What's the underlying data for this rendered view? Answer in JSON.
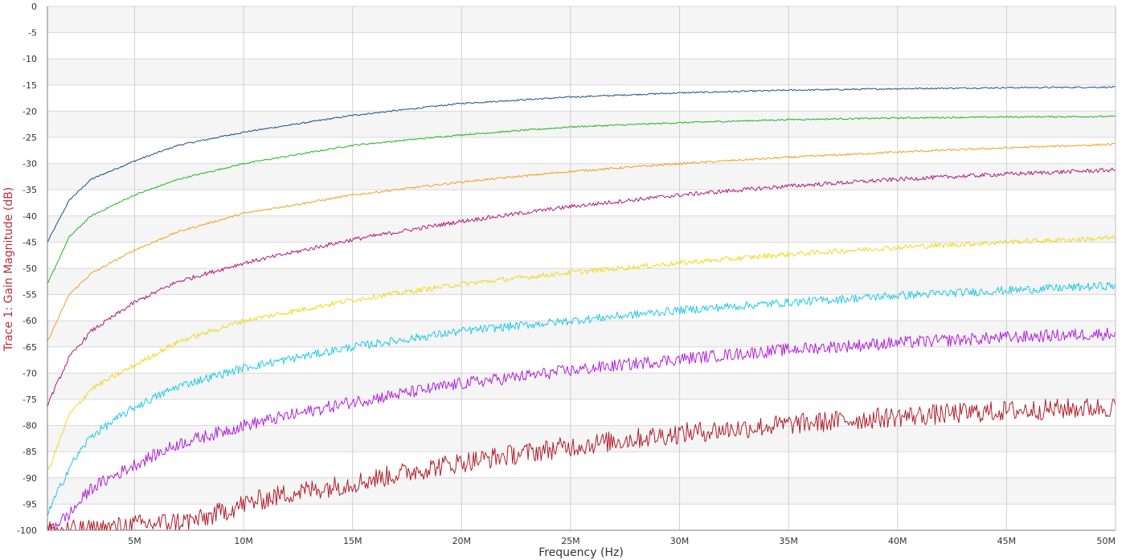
{
  "chart_data": {
    "type": "line",
    "xlabel": "Frequency (Hz)",
    "ylabel": "Trace 1: Gain Magnitude (dB)",
    "xlim": [
      1000000,
      50000000
    ],
    "ylim": [
      -100,
      0
    ],
    "grid": true,
    "x_ticks": [
      {
        "value": 5000000,
        "label": "5M"
      },
      {
        "value": 10000000,
        "label": "10M"
      },
      {
        "value": 15000000,
        "label": "15M"
      },
      {
        "value": 20000000,
        "label": "20M"
      },
      {
        "value": 25000000,
        "label": "25M"
      },
      {
        "value": 30000000,
        "label": "30M"
      },
      {
        "value": 35000000,
        "label": "35M"
      },
      {
        "value": 40000000,
        "label": "40M"
      },
      {
        "value": 45000000,
        "label": "45M"
      },
      {
        "value": 50000000,
        "label": "50M"
      }
    ],
    "y_ticks": [
      {
        "value": 0,
        "label": "0"
      },
      {
        "value": -5,
        "label": "-5"
      },
      {
        "value": -10,
        "label": "-10"
      },
      {
        "value": -15,
        "label": "-15"
      },
      {
        "value": -20,
        "label": "-20"
      },
      {
        "value": -25,
        "label": "-25"
      },
      {
        "value": -30,
        "label": "-30"
      },
      {
        "value": -35,
        "label": "-35"
      },
      {
        "value": -40,
        "label": "-40"
      },
      {
        "value": -45,
        "label": "-45"
      },
      {
        "value": -50,
        "label": "-50"
      },
      {
        "value": -55,
        "label": "-55"
      },
      {
        "value": -60,
        "label": "-60"
      },
      {
        "value": -65,
        "label": "-65"
      },
      {
        "value": -70,
        "label": "-70"
      },
      {
        "value": -75,
        "label": "-75"
      },
      {
        "value": -80,
        "label": "-80"
      },
      {
        "value": -85,
        "label": "-85"
      },
      {
        "value": -90,
        "label": "-90"
      },
      {
        "value": -95,
        "label": "-95"
      },
      {
        "value": -100,
        "label": "-100"
      }
    ],
    "series": [
      {
        "color": "#1f4e8c",
        "noise": 0.15,
        "x": [
          1000000,
          2000000,
          3000000,
          5000000,
          7000000,
          10000000,
          15000000,
          20000000,
          25000000,
          30000000,
          35000000,
          40000000,
          45000000,
          50000000
        ],
        "y": [
          -45,
          -37,
          -33,
          -29.5,
          -26.5,
          -24,
          -20.8,
          -18.5,
          -17.3,
          -16.5,
          -16,
          -15.7,
          -15.5,
          -15.4
        ]
      },
      {
        "color": "#22b422",
        "noise": 0.15,
        "x": [
          1000000,
          2000000,
          3000000,
          5000000,
          7000000,
          10000000,
          15000000,
          20000000,
          25000000,
          30000000,
          35000000,
          40000000,
          45000000,
          50000000
        ],
        "y": [
          -53,
          -44,
          -40,
          -36,
          -33,
          -30,
          -26.5,
          -24.5,
          -23,
          -22.2,
          -21.6,
          -21.3,
          -21.1,
          -21
        ]
      },
      {
        "color": "#f0a020",
        "noise": 0.2,
        "x": [
          1000000,
          2000000,
          3000000,
          5000000,
          7000000,
          10000000,
          15000000,
          20000000,
          25000000,
          30000000,
          35000000,
          40000000,
          45000000,
          50000000
        ],
        "y": [
          -64,
          -55,
          -51,
          -46.5,
          -43,
          -39.5,
          -36,
          -33.5,
          -31.5,
          -30,
          -28.8,
          -27.8,
          -27,
          -26.3
        ]
      },
      {
        "color": "#b0197e",
        "noise": 0.4,
        "x": [
          1000000,
          2000000,
          3000000,
          5000000,
          7000000,
          10000000,
          15000000,
          20000000,
          25000000,
          30000000,
          35000000,
          40000000,
          45000000,
          50000000
        ],
        "y": [
          -76,
          -67,
          -62,
          -56.5,
          -52.5,
          -49,
          -44.5,
          -41,
          -38.2,
          -36,
          -34.3,
          -33,
          -32,
          -31.2
        ]
      },
      {
        "color": "#f0d820",
        "noise": 0.5,
        "x": [
          1000000,
          2000000,
          3000000,
          5000000,
          7000000,
          10000000,
          15000000,
          20000000,
          25000000,
          30000000,
          35000000,
          40000000,
          45000000,
          50000000
        ],
        "y": [
          -89,
          -78,
          -73,
          -68.5,
          -64,
          -60,
          -56,
          -53,
          -50.8,
          -49,
          -47.3,
          -46,
          -45,
          -44.2
        ]
      },
      {
        "color": "#20c8e8",
        "noise": 0.8,
        "x": [
          1000000,
          2000000,
          3000000,
          5000000,
          7000000,
          10000000,
          15000000,
          20000000,
          25000000,
          30000000,
          35000000,
          40000000,
          45000000,
          50000000
        ],
        "y": [
          -97,
          -88,
          -82,
          -76.5,
          -72.5,
          -69,
          -65,
          -62,
          -60,
          -58,
          -56.5,
          -55.2,
          -54.2,
          -53.3
        ]
      },
      {
        "color": "#b020d8",
        "noise": 1.2,
        "x": [
          1000000,
          2000000,
          3000000,
          5000000,
          7000000,
          10000000,
          15000000,
          20000000,
          25000000,
          30000000,
          35000000,
          40000000,
          45000000,
          50000000
        ],
        "y": [
          -100,
          -97,
          -92,
          -87.5,
          -83.5,
          -80,
          -75.5,
          -72,
          -69.5,
          -67.3,
          -65.5,
          -64.2,
          -63.2,
          -62.4
        ]
      },
      {
        "color": "#b01e2a",
        "noise": 2.0,
        "x": [
          1000000,
          3000000,
          5000000,
          8000000,
          10000000,
          12000000,
          15000000,
          18000000,
          20000000,
          25000000,
          30000000,
          35000000,
          40000000,
          45000000,
          50000000
        ],
        "y": [
          -100,
          -100,
          -99,
          -98,
          -95,
          -93,
          -91,
          -88.5,
          -87,
          -84,
          -81.5,
          -79.8,
          -78.3,
          -77.2,
          -76.5
        ]
      }
    ]
  }
}
